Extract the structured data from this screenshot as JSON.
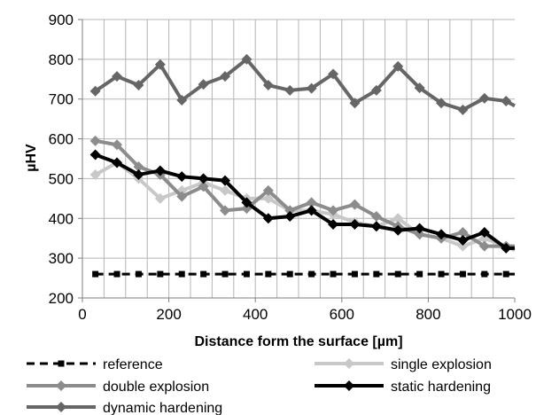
{
  "chart_data": {
    "type": "line",
    "title": "",
    "xlabel": "Distance form the surface [µm]",
    "ylabel": "µHV",
    "xlim": [
      0,
      1000
    ],
    "ylim": [
      200,
      900
    ],
    "x_ticks": [
      0,
      200,
      400,
      600,
      800,
      1000
    ],
    "y_ticks": [
      200,
      300,
      400,
      500,
      600,
      700,
      800,
      900
    ],
    "grid": "vertical and horizontal",
    "legend_position": "bottom",
    "x": [
      30,
      80,
      130,
      180,
      230,
      280,
      330,
      380,
      430,
      480,
      530,
      580,
      630,
      680,
      730,
      780,
      830,
      880,
      930,
      980,
      1000
    ],
    "series": [
      {
        "name": "reference",
        "color": "#000000",
        "style": "dashed",
        "marker": "square",
        "values": [
          260,
          260,
          260,
          260,
          260,
          260,
          260,
          260,
          260,
          260,
          260,
          260,
          260,
          260,
          260,
          260,
          260,
          260,
          260,
          260,
          260
        ]
      },
      {
        "name": "single explosion",
        "color": "#c8c8c8",
        "style": "solid",
        "marker": "diamond",
        "values": [
          510,
          540,
          500,
          450,
          470,
          490,
          470,
          450,
          450,
          420,
          420,
          410,
          390,
          380,
          400,
          360,
          350,
          330,
          350,
          330,
          320
        ]
      },
      {
        "name": "double explosion",
        "color": "#8c8c8c",
        "style": "solid",
        "marker": "diamond",
        "values": [
          595,
          585,
          530,
          510,
          455,
          480,
          420,
          425,
          470,
          420,
          440,
          420,
          435,
          405,
          380,
          360,
          350,
          365,
          330,
          330,
          330
        ]
      },
      {
        "name": "static hardening",
        "color": "#000000",
        "style": "solid",
        "marker": "diamond",
        "values": [
          560,
          540,
          510,
          520,
          505,
          500,
          495,
          440,
          400,
          405,
          420,
          385,
          385,
          380,
          370,
          375,
          360,
          345,
          365,
          325,
          325
        ]
      },
      {
        "name": "dynamic hardening",
        "color": "#666666",
        "style": "solid",
        "marker": "diamond",
        "values": [
          720,
          757,
          735,
          787,
          697,
          737,
          757,
          800,
          735,
          722,
          727,
          763,
          690,
          722,
          782,
          728,
          690,
          673,
          702,
          695,
          683
        ]
      }
    ]
  }
}
